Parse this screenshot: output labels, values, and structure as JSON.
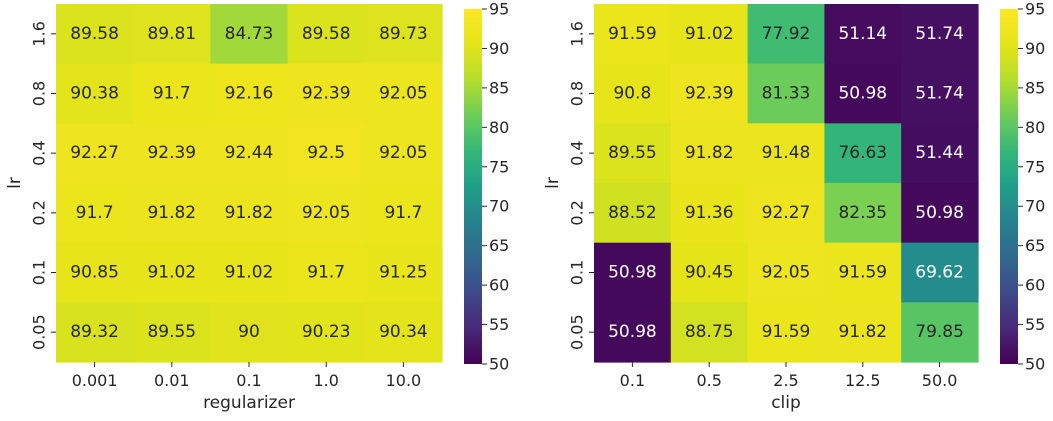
{
  "chart_data": [
    {
      "type": "heatmap",
      "title": "",
      "xlabel": "regularizer",
      "ylabel": "lr",
      "x_categories": [
        "0.001",
        "0.01",
        "0.1",
        "1.0",
        "10.0"
      ],
      "y_categories": [
        "1.6",
        "0.8",
        "0.4",
        "0.2",
        "0.1",
        "0.05"
      ],
      "values": [
        [
          89.58,
          89.81,
          84.73,
          89.58,
          89.73
        ],
        [
          90.38,
          91.7,
          92.16,
          92.39,
          92.05
        ],
        [
          92.27,
          92.39,
          92.44,
          92.5,
          92.05
        ],
        [
          91.7,
          91.82,
          91.82,
          92.05,
          91.7
        ],
        [
          90.85,
          91.02,
          91.02,
          91.7,
          91.25
        ],
        [
          89.32,
          89.55,
          90,
          90.23,
          90.34
        ]
      ],
      "cell_labels": [
        [
          "89.58",
          "89.81",
          "84.73",
          "89.58",
          "89.73"
        ],
        [
          "90.38",
          "91.7",
          "92.16",
          "92.39",
          "92.05"
        ],
        [
          "92.27",
          "92.39",
          "92.44",
          "92.5",
          "92.05"
        ],
        [
          "91.7",
          "91.82",
          "91.82",
          "92.05",
          "91.7"
        ],
        [
          "90.85",
          "91.02",
          "91.02",
          "91.7",
          "91.25"
        ],
        [
          "89.32",
          "89.55",
          "90",
          "90.23",
          "90.34"
        ]
      ],
      "colorbar": {
        "colormap": "viridis",
        "range": [
          50,
          95
        ],
        "ticks": [
          95,
          90,
          85,
          80,
          75,
          70,
          65,
          60,
          55,
          50
        ],
        "tick_labels": [
          "95",
          "90",
          "85",
          "80",
          "75",
          "70",
          "65",
          "60",
          "55",
          "50"
        ]
      },
      "grid": false
    },
    {
      "type": "heatmap",
      "title": "",
      "xlabel": "clip",
      "ylabel": "lr",
      "x_categories": [
        "0.1",
        "0.5",
        "2.5",
        "12.5",
        "50.0"
      ],
      "y_categories": [
        "1.6",
        "0.8",
        "0.4",
        "0.2",
        "0.1",
        "0.05"
      ],
      "values": [
        [
          91.59,
          91.02,
          77.92,
          51.14,
          51.74
        ],
        [
          90.8,
          92.39,
          81.33,
          50.98,
          51.74
        ],
        [
          89.55,
          91.82,
          91.48,
          76.63,
          51.44
        ],
        [
          88.52,
          91.36,
          92.27,
          82.35,
          50.98
        ],
        [
          50.98,
          90.45,
          92.05,
          91.59,
          69.62
        ],
        [
          50.98,
          88.75,
          91.59,
          91.82,
          79.85
        ]
      ],
      "cell_labels": [
        [
          "91.59",
          "91.02",
          "77.92",
          "51.14",
          "51.74"
        ],
        [
          "90.8",
          "92.39",
          "81.33",
          "50.98",
          "51.74"
        ],
        [
          "89.55",
          "91.82",
          "91.48",
          "76.63",
          "51.44"
        ],
        [
          "88.52",
          "91.36",
          "92.27",
          "82.35",
          "50.98"
        ],
        [
          "50.98",
          "90.45",
          "92.05",
          "91.59",
          "69.62"
        ],
        [
          "50.98",
          "88.75",
          "91.59",
          "91.82",
          "79.85"
        ]
      ],
      "colorbar": {
        "colormap": "viridis",
        "range": [
          50,
          95
        ],
        "ticks": [
          95,
          90,
          85,
          80,
          75,
          70,
          65,
          60,
          55,
          50
        ],
        "tick_labels": [
          "95",
          "90",
          "85",
          "80",
          "75",
          "70",
          "65",
          "60",
          "55",
          "50"
        ]
      },
      "grid": false
    }
  ]
}
